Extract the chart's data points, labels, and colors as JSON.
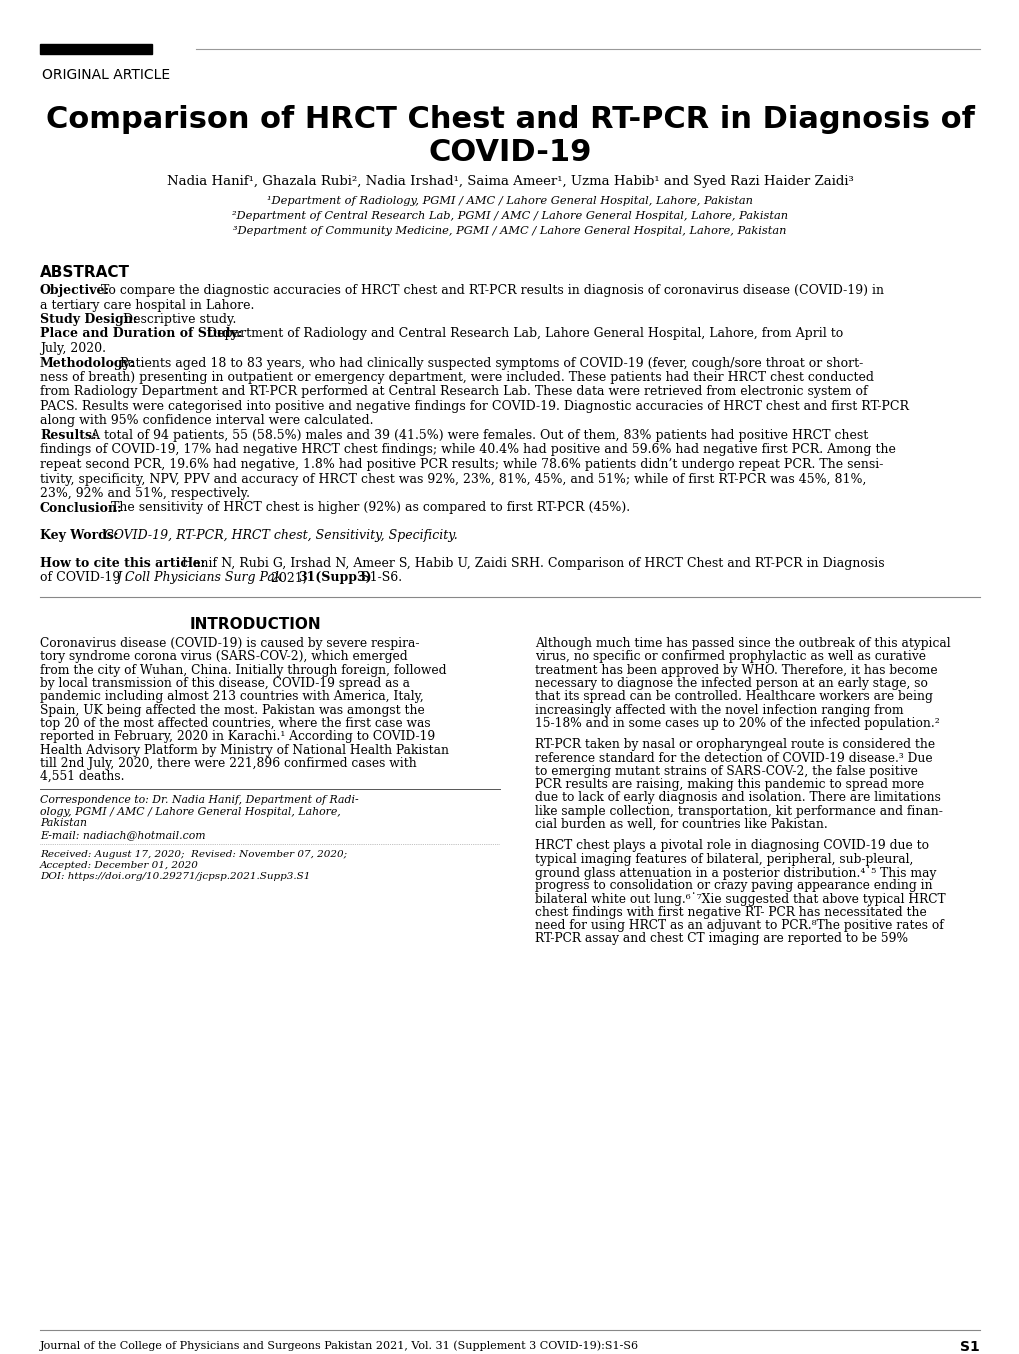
{
  "bg_color": "#ffffff",
  "header_label": "ORIGINAL ARTICLE",
  "title_line1": "Comparison of HRCT Chest and RT-PCR in Diagnosis of",
  "title_line2": "COVID-19",
  "authors": "Nadia Hanif¹, Ghazala Rubi², Nadia Irshad¹, Saima Ameer¹, Uzma Habib¹ and Syed Razi Haider Zaidi³",
  "affil1": "¹Department of Radiology, PGMI / AMC / Lahore General Hospital, Lahore, Pakistan",
  "affil2": "²Department of Central Research Lab, PGMI / AMC / Lahore General Hospital, Lahore, Pakistan",
  "affil3": "³Department of Community Medicine, PGMI / AMC / Lahore General Hospital, Lahore, Pakistan",
  "abstract_title": "ABSTRACT",
  "intro_title": "INTRODUCTION",
  "footer": "Journal of the College of Physicians and Surgeons Pakistan 2021, Vol. 31 (Supplement 3 COVID-19):S1-S6",
  "footer_right": "S1"
}
